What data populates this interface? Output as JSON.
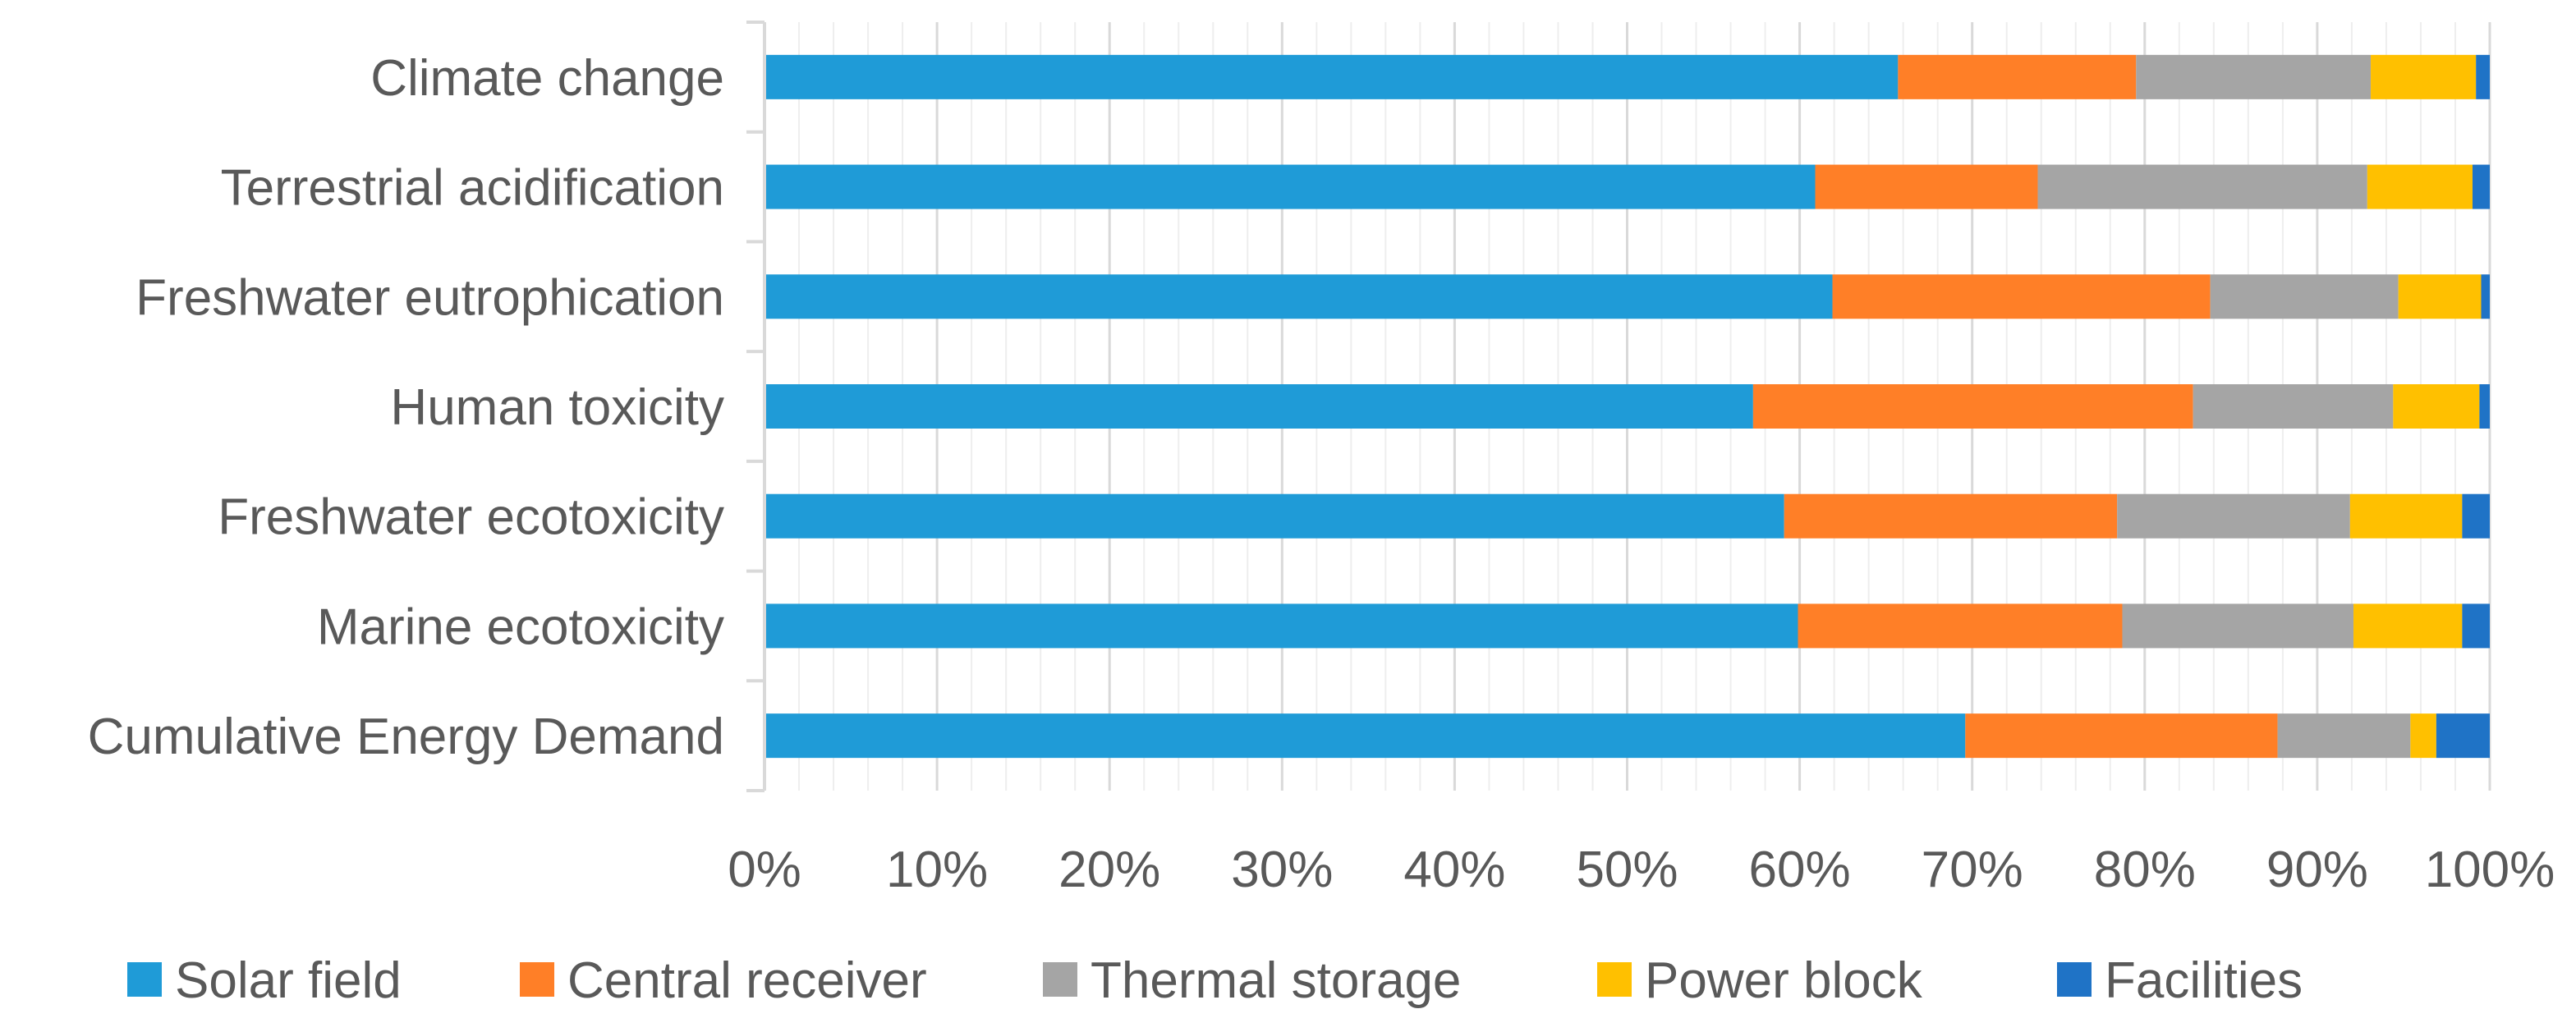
{
  "chart_data": {
    "type": "bar",
    "orientation": "horizontal",
    "stacked": "percent",
    "categories": [
      "Climate change",
      "Terrestrial acidification",
      "Freshwater eutrophication",
      "Human toxicity",
      "Freshwater ecotoxicity",
      "Marine ecotoxicity",
      "Cumulative Energy Demand"
    ],
    "series": [
      {
        "name": "Solar field",
        "color": "#1F9BD7",
        "values": [
          65.7,
          60.9,
          61.9,
          57.3,
          59.1,
          59.9,
          69.6
        ]
      },
      {
        "name": "Central receiver",
        "color": "#FF7F27",
        "values": [
          13.8,
          12.9,
          21.9,
          25.5,
          19.3,
          18.8,
          18.1
        ]
      },
      {
        "name": "Thermal storage",
        "color": "#A5A5A5",
        "values": [
          13.6,
          19.1,
          10.9,
          11.6,
          13.5,
          13.4,
          7.7
        ]
      },
      {
        "name": "Power block",
        "color": "#FFC000",
        "values": [
          6.1,
          6.1,
          4.8,
          5.0,
          6.5,
          6.3,
          1.5
        ]
      },
      {
        "name": "Facilities",
        "color": "#1F73C6",
        "values": [
          0.8,
          1.0,
          0.5,
          0.6,
          1.6,
          1.6,
          3.1
        ]
      }
    ],
    "x_ticks": [
      "0%",
      "10%",
      "20%",
      "30%",
      "40%",
      "50%",
      "60%",
      "70%",
      "80%",
      "90%",
      "100%"
    ],
    "xlim": [
      0,
      100
    ],
    "grid": true,
    "legend_position": "bottom",
    "title": "",
    "xlabel": "",
    "ylabel": ""
  }
}
